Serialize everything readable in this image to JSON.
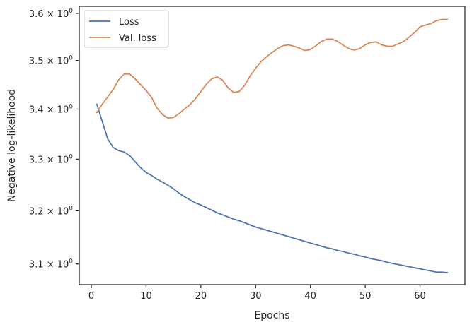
{
  "chart_data": {
    "type": "line",
    "title": "",
    "xlabel": "Epochs",
    "ylabel": "Negative log-likelihood",
    "y_scale": "log",
    "xlim": [
      -2.2,
      68.2
    ],
    "ylim": [
      3.062,
      3.615
    ],
    "x_ticks": [
      0,
      10,
      20,
      30,
      40,
      50,
      60
    ],
    "x_tick_labels": [
      "0",
      "10",
      "20",
      "30",
      "40",
      "50",
      "60"
    ],
    "y_ticks": [
      3.1,
      3.2,
      3.3,
      3.4,
      3.5,
      3.6
    ],
    "y_tick_labels": [
      {
        "base": "3.1 × 10",
        "exp": "0"
      },
      {
        "base": "3.2 × 10",
        "exp": "0"
      },
      {
        "base": "3.3 × 10",
        "exp": "0"
      },
      {
        "base": "3.4 × 10",
        "exp": "0"
      },
      {
        "base": "3.5 × 10",
        "exp": "0"
      },
      {
        "base": "3.6 × 10",
        "exp": "0"
      }
    ],
    "grid": false,
    "legend_position": "top-left",
    "series": [
      {
        "name": "Loss",
        "color": "#4c72b0",
        "x": [
          1,
          2,
          3,
          4,
          5,
          6,
          7,
          8,
          9,
          10,
          11,
          12,
          13,
          14,
          15,
          16,
          17,
          18,
          19,
          20,
          21,
          22,
          23,
          24,
          25,
          26,
          27,
          28,
          29,
          30,
          31,
          32,
          33,
          34,
          35,
          36,
          37,
          38,
          39,
          40,
          41,
          42,
          43,
          44,
          45,
          46,
          47,
          48,
          49,
          50,
          51,
          52,
          53,
          54,
          55,
          56,
          57,
          58,
          59,
          60,
          61,
          62,
          63,
          64,
          65
        ],
        "y": [
          3.41,
          3.375,
          3.34,
          3.323,
          3.317,
          3.314,
          3.307,
          3.295,
          3.283,
          3.274,
          3.268,
          3.261,
          3.255,
          3.249,
          3.242,
          3.234,
          3.227,
          3.221,
          3.215,
          3.211,
          3.206,
          3.201,
          3.196,
          3.192,
          3.188,
          3.184,
          3.181,
          3.177,
          3.173,
          3.169,
          3.166,
          3.163,
          3.16,
          3.157,
          3.154,
          3.151,
          3.148,
          3.145,
          3.142,
          3.139,
          3.136,
          3.133,
          3.13,
          3.128,
          3.125,
          3.123,
          3.12,
          3.118,
          3.115,
          3.113,
          3.11,
          3.108,
          3.106,
          3.103,
          3.101,
          3.099,
          3.097,
          3.095,
          3.093,
          3.091,
          3.089,
          3.087,
          3.085,
          3.085,
          3.084
        ]
      },
      {
        "name": "Val. loss",
        "color": "#dd8452",
        "x": [
          1,
          2,
          3,
          4,
          5,
          6,
          7,
          8,
          9,
          10,
          11,
          12,
          13,
          14,
          15,
          16,
          17,
          18,
          19,
          20,
          21,
          22,
          23,
          24,
          25,
          26,
          27,
          28,
          29,
          30,
          31,
          32,
          33,
          34,
          35,
          36,
          37,
          38,
          39,
          40,
          41,
          42,
          43,
          44,
          45,
          46,
          47,
          48,
          49,
          50,
          51,
          52,
          53,
          54,
          55,
          56,
          57,
          58,
          59,
          60,
          61,
          62,
          63,
          64,
          65
        ],
        "y": [
          3.393,
          3.41,
          3.425,
          3.44,
          3.46,
          3.472,
          3.472,
          3.462,
          3.45,
          3.438,
          3.424,
          3.402,
          3.389,
          3.382,
          3.383,
          3.391,
          3.4,
          3.409,
          3.421,
          3.436,
          3.451,
          3.462,
          3.466,
          3.459,
          3.443,
          3.434,
          3.436,
          3.449,
          3.468,
          3.484,
          3.498,
          3.508,
          3.517,
          3.525,
          3.531,
          3.533,
          3.53,
          3.526,
          3.521,
          3.523,
          3.531,
          3.54,
          3.545,
          3.545,
          3.54,
          3.532,
          3.525,
          3.522,
          3.525,
          3.533,
          3.538,
          3.539,
          3.533,
          3.53,
          3.53,
          3.535,
          3.54,
          3.549,
          3.559,
          3.571,
          3.575,
          3.578,
          3.584,
          3.587,
          3.587
        ]
      }
    ]
  }
}
